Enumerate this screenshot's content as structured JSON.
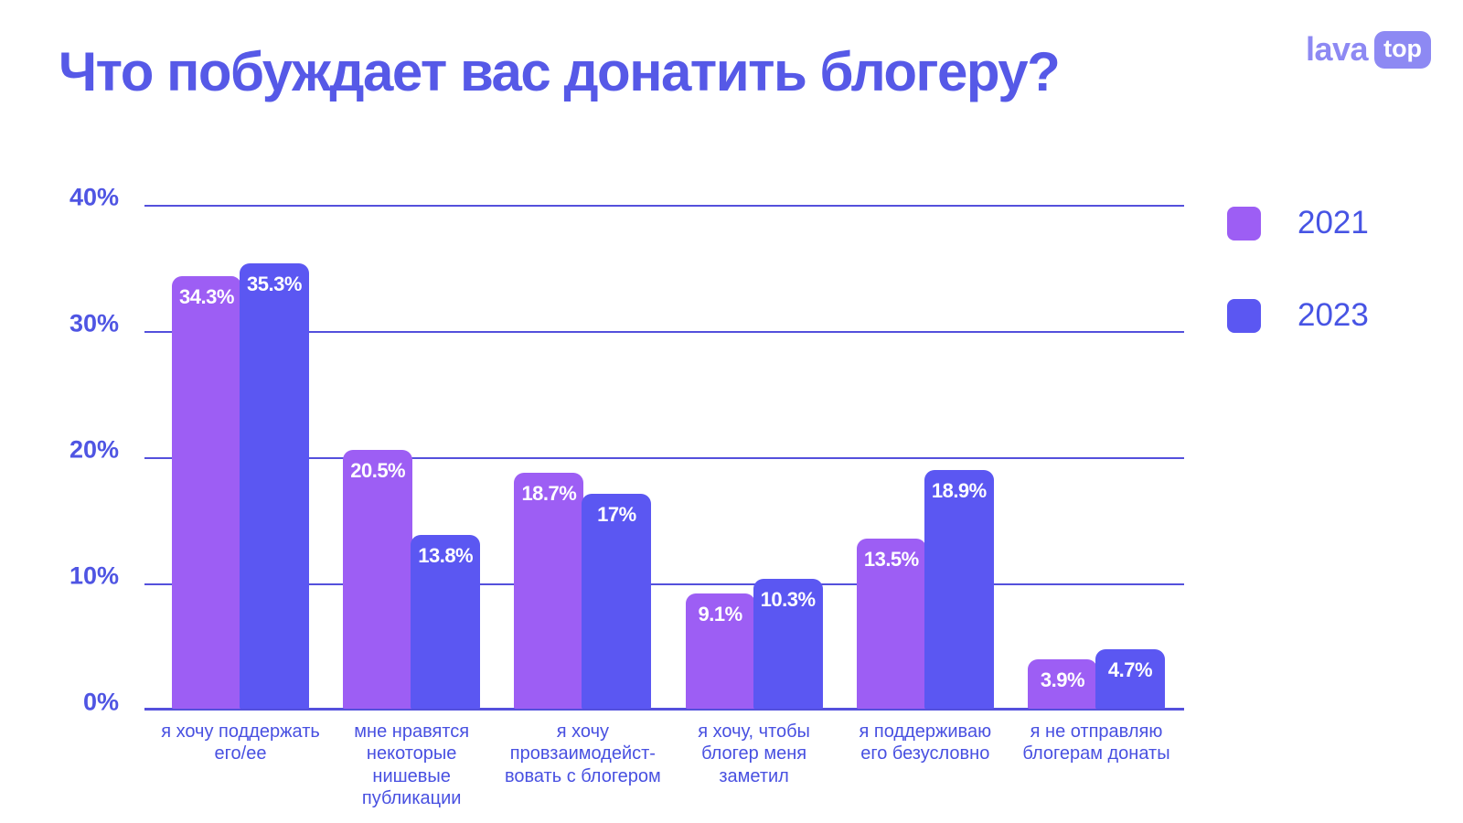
{
  "header": {
    "title": "Что побуждает вас донатить блогеру?",
    "logo": {
      "text": "lava",
      "badge": "top",
      "color": "#8D89F3"
    }
  },
  "legend": [
    {
      "label": "2021",
      "color": "#9D5EF4"
    },
    {
      "label": "2023",
      "color": "#5B57F2"
    }
  ],
  "chart_data": {
    "type": "bar",
    "title": "Что побуждает вас донатить блогеру?",
    "categories": [
      [
        "я хочу поддержать",
        "его/ее"
      ],
      [
        "мне нравятся",
        "некоторые",
        "нишевые",
        "публикации"
      ],
      [
        "я хочу",
        "провзаимодейст-",
        "вовать с блогером"
      ],
      [
        "я хочу, чтобы",
        "блогер меня",
        "заметил"
      ],
      [
        "я поддерживаю",
        "его безусловно"
      ],
      [
        "я не отправляю",
        "блогерам донаты"
      ]
    ],
    "series": [
      {
        "name": "2021",
        "color": "#9D5EF4",
        "values": [
          34.3,
          20.5,
          18.7,
          9.1,
          13.5,
          3.9
        ],
        "labels": [
          "34.3%",
          "20.5%",
          "18.7%",
          "9.1%",
          "13.5%",
          "3.9%"
        ]
      },
      {
        "name": "2023",
        "color": "#5B57F2",
        "values": [
          35.3,
          13.8,
          17,
          10.3,
          18.9,
          4.7
        ],
        "labels": [
          "35.3%",
          "13.8%",
          "17%",
          "10.3%",
          "18.9%",
          "4.7%"
        ]
      }
    ],
    "yticks": [
      {
        "value": 40,
        "label": "40%"
      },
      {
        "value": 30,
        "label": "30%"
      },
      {
        "value": 20,
        "label": "20%"
      },
      {
        "value": 10,
        "label": "10%"
      },
      {
        "value": 0,
        "label": "0%"
      }
    ],
    "ylim": [
      0,
      40
    ],
    "grid": true,
    "legend_position": "right",
    "axis_color": "#5450DC",
    "text_color": "#4F55E3",
    "value_label_color": "#FFFFFF"
  }
}
